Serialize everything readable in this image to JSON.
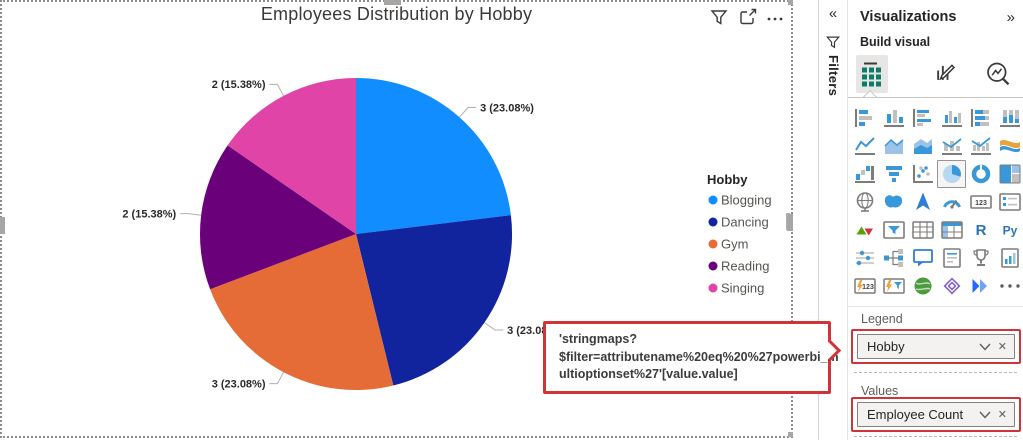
{
  "visual": {
    "title": "Employees Distribution by Hobby",
    "header_icons": [
      "filter-funnel",
      "focus-mode",
      "more-options"
    ]
  },
  "chart_data": {
    "type": "pie",
    "title": "Employees Distribution by Hobby",
    "categories": [
      "Blogging",
      "Dancing",
      "Gym",
      "Reading",
      "Singing"
    ],
    "values": [
      3,
      3,
      3,
      2,
      2
    ],
    "percentages": [
      23.08,
      23.08,
      23.08,
      15.38,
      15.38
    ],
    "data_labels": [
      "3 (23.08%)",
      "3 (23.08%)",
      "3 (23.08%)",
      "2 (15.38%)",
      "2 (15.38%)"
    ],
    "colors": [
      "#118DFF",
      "#12239E",
      "#E66C37",
      "#6B007B",
      "#E044A7"
    ],
    "legend": {
      "title": "Hobby",
      "position": "right"
    }
  },
  "annotation": {
    "lines": [
      "'stringmaps?",
      "$filter=attributename%20eq%20%27powerbi_m",
      "ultioptionset%27'[value.value]"
    ],
    "border_color": "#D13438"
  },
  "filters_pane": {
    "label": "Filters",
    "collapse_glyph": "«"
  },
  "viz_panel": {
    "title": "Visualizations",
    "expand_glyph": "»",
    "build_section_label": "Build visual",
    "tabs": [
      "build-visual",
      "format-visual",
      "analytics"
    ],
    "selected_tab": "build-visual",
    "selected_visual": "pie-chart",
    "gallery": [
      "stacked-bar-chart",
      "stacked-column-chart",
      "clustered-bar-chart",
      "clustered-column-chart",
      "hundred-percent-stacked-bar-chart",
      "hundred-percent-stacked-column-chart",
      "line-chart",
      "area-chart",
      "stacked-area-chart",
      "line-and-stacked-column-chart",
      "line-and-clustered-column-chart",
      "ribbon-chart",
      "waterfall-chart",
      "funnel-chart",
      "scatter-chart",
      "pie-chart",
      "donut-chart",
      "treemap",
      "map",
      "filled-map",
      "azure-map",
      "gauge",
      "card",
      "multi-row-card",
      "kpi",
      "slicer",
      "table",
      "matrix",
      "r-script-visual",
      "python-visual",
      "key-influencers",
      "decomposition-tree",
      "q-and-a",
      "smart-narrative",
      "metrics",
      "paginated-report",
      "power-apps",
      "power-automate",
      "arcgis-maps",
      "custom-visual",
      "power-automate-visual",
      "get-more-visuals"
    ],
    "field_wells": {
      "legend_label": "Legend",
      "legend_value": "Hobby",
      "values_label": "Values",
      "values_value": "Employee Count"
    },
    "remove_glyph": "✕"
  }
}
